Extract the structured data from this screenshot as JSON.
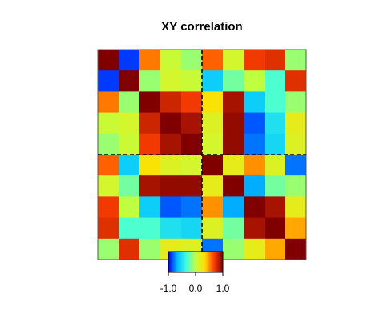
{
  "chart_data": {
    "type": "heatmap",
    "title": "XY correlation",
    "xlabel": "",
    "ylabel": "",
    "value_range": [
      -1.0,
      1.0
    ],
    "colorbar": {
      "ticks": [
        -1.0,
        0.0,
        1.0
      ],
      "tick_labels": [
        "-1.0",
        "0.0",
        "1.0"
      ],
      "colors": [
        "#0000ff",
        "#00c0ff",
        "#40ffe0",
        "#c0ff40",
        "#ffe000",
        "#ff4000",
        "#800000"
      ]
    },
    "grid": false,
    "divider_lines": {
      "after_column": 5,
      "after_row": 5,
      "style": "dashed"
    },
    "rows": 10,
    "cols": 10,
    "matrix": [
      [
        1.0,
        -0.9,
        0.55,
        0.05,
        -0.1,
        0.6,
        0.1,
        0.7,
        0.75,
        -0.1
      ],
      [
        -0.9,
        1.0,
        -0.1,
        0.1,
        0.05,
        -0.6,
        -0.2,
        0.0,
        -0.3,
        0.75
      ],
      [
        0.55,
        -0.1,
        1.0,
        0.8,
        0.7,
        0.3,
        0.9,
        -0.6,
        -0.3,
        -0.1
      ],
      [
        0.05,
        0.1,
        0.8,
        1.0,
        0.9,
        0.15,
        0.95,
        -0.85,
        -0.5,
        0.2
      ],
      [
        -0.1,
        0.05,
        0.7,
        0.9,
        1.0,
        0.1,
        0.95,
        -0.8,
        -0.55,
        0.15
      ],
      [
        0.6,
        -0.6,
        0.3,
        0.15,
        0.1,
        1.0,
        0.2,
        0.5,
        0.15,
        -0.8
      ],
      [
        0.1,
        -0.2,
        0.9,
        0.95,
        0.95,
        0.2,
        1.0,
        -0.7,
        -0.2,
        -0.1
      ],
      [
        0.7,
        0.0,
        -0.6,
        -0.85,
        -0.8,
        0.5,
        -0.7,
        1.0,
        0.9,
        0.2
      ],
      [
        0.75,
        -0.3,
        -0.3,
        -0.5,
        -0.55,
        0.15,
        -0.2,
        0.9,
        1.0,
        0.45
      ],
      [
        -0.1,
        0.75,
        -0.1,
        0.2,
        0.15,
        -0.8,
        -0.1,
        0.2,
        0.45,
        1.0
      ]
    ]
  }
}
